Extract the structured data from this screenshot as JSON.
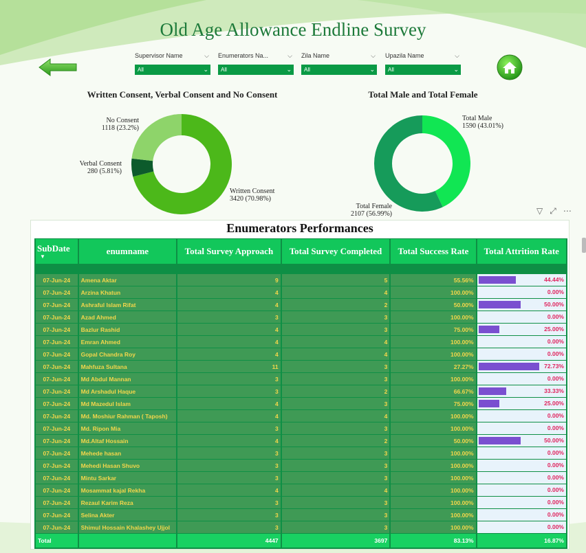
{
  "title": "Old Age Allowance Endline Survey",
  "slicers": [
    {
      "label": "Supervisor Name",
      "value": "All"
    },
    {
      "label": "Enumerators Na...",
      "value": "All"
    },
    {
      "label": "Zila Name",
      "value": "All"
    },
    {
      "label": "Upazila Name",
      "value": "All"
    }
  ],
  "consent_chart": {
    "title": "Written Consent, Verbal Consent and No Consent",
    "labels": [
      {
        "name": "No Consent",
        "value": "1118 (23.2%)"
      },
      {
        "name": "Verbal Consent",
        "value": "280 (5.81%)"
      },
      {
        "name": "Written Consent",
        "value": "3420 (70.98%)"
      }
    ]
  },
  "gender_chart": {
    "title": "Total Male and Total Female",
    "labels": [
      {
        "name": "Total Male",
        "value": "1590 (43.01%)"
      },
      {
        "name": "Total Female",
        "value": "2107 (56.99%)"
      }
    ]
  },
  "chart_data": [
    {
      "type": "pie",
      "title": "Written Consent, Verbal Consent and No Consent",
      "categories": [
        "Written Consent",
        "Verbal Consent",
        "No Consent"
      ],
      "values": [
        3420,
        280,
        1118
      ],
      "colors": [
        "#4cb81a",
        "#0d5b2c",
        "#8ed46a"
      ]
    },
    {
      "type": "pie",
      "title": "Total Male and Total Female",
      "categories": [
        "Total Male",
        "Total Female"
      ],
      "values": [
        1590,
        2107
      ],
      "colors": [
        "#11e653",
        "#169b5a"
      ]
    }
  ],
  "table": {
    "title": "Enumerators Performances",
    "headers": [
      "SubDate",
      "enumname",
      "Total Survey Approach",
      "Total Survey Completed",
      "Total Success Rate",
      "Total Attrition Rate"
    ],
    "rows": [
      {
        "date": "07-Jun-24",
        "name": "Amena Aktar",
        "approach": "9",
        "completed": "5",
        "success": "55.56%",
        "attrition": "44.44%",
        "attr_value": 0.4444
      },
      {
        "date": "07-Jun-24",
        "name": "Arzina Khatun",
        "approach": "4",
        "completed": "4",
        "success": "100.00%",
        "attrition": "0.00%",
        "attr_value": 0
      },
      {
        "date": "07-Jun-24",
        "name": "Ashraful Islam Rifat",
        "approach": "4",
        "completed": "2",
        "success": "50.00%",
        "attrition": "50.00%",
        "attr_value": 0.5
      },
      {
        "date": "07-Jun-24",
        "name": "Azad Ahmed",
        "approach": "3",
        "completed": "3",
        "success": "100.00%",
        "attrition": "0.00%",
        "attr_value": 0
      },
      {
        "date": "07-Jun-24",
        "name": "Bazlur Rashid",
        "approach": "4",
        "completed": "3",
        "success": "75.00%",
        "attrition": "25.00%",
        "attr_value": 0.25
      },
      {
        "date": "07-Jun-24",
        "name": "Emran Ahmed",
        "approach": "4",
        "completed": "4",
        "success": "100.00%",
        "attrition": "0.00%",
        "attr_value": 0
      },
      {
        "date": "07-Jun-24",
        "name": "Gopal Chandra Roy",
        "approach": "4",
        "completed": "4",
        "success": "100.00%",
        "attrition": "0.00%",
        "attr_value": 0
      },
      {
        "date": "07-Jun-24",
        "name": "Mahfuza Sultana",
        "approach": "11",
        "completed": "3",
        "success": "27.27%",
        "attrition": "72.73%",
        "attr_value": 0.7273
      },
      {
        "date": "07-Jun-24",
        "name": "Md Abdul Mannan",
        "approach": "3",
        "completed": "3",
        "success": "100.00%",
        "attrition": "0.00%",
        "attr_value": 0
      },
      {
        "date": "07-Jun-24",
        "name": "Md Arshadul Haque",
        "approach": "3",
        "completed": "2",
        "success": "66.67%",
        "attrition": "33.33%",
        "attr_value": 0.3333
      },
      {
        "date": "07-Jun-24",
        "name": "Md Mazedul Islam",
        "approach": "4",
        "completed": "3",
        "success": "75.00%",
        "attrition": "25.00%",
        "attr_value": 0.25
      },
      {
        "date": "07-Jun-24",
        "name": "Md. Moshiur Rahman ( Taposh)",
        "approach": "4",
        "completed": "4",
        "success": "100.00%",
        "attrition": "0.00%",
        "attr_value": 0
      },
      {
        "date": "07-Jun-24",
        "name": "Md. Ripon Mia",
        "approach": "3",
        "completed": "3",
        "success": "100.00%",
        "attrition": "0.00%",
        "attr_value": 0
      },
      {
        "date": "07-Jun-24",
        "name": "Md.Altaf Hossain",
        "approach": "4",
        "completed": "2",
        "success": "50.00%",
        "attrition": "50.00%",
        "attr_value": 0.5
      },
      {
        "date": "07-Jun-24",
        "name": "Mehede hasan",
        "approach": "3",
        "completed": "3",
        "success": "100.00%",
        "attrition": "0.00%",
        "attr_value": 0
      },
      {
        "date": "07-Jun-24",
        "name": "Mehedi Hasan Shuvo",
        "approach": "3",
        "completed": "3",
        "success": "100.00%",
        "attrition": "0.00%",
        "attr_value": 0
      },
      {
        "date": "07-Jun-24",
        "name": "Mintu Sarkar",
        "approach": "3",
        "completed": "3",
        "success": "100.00%",
        "attrition": "0.00%",
        "attr_value": 0
      },
      {
        "date": "07-Jun-24",
        "name": "Mosammat kajal Rekha",
        "approach": "4",
        "completed": "4",
        "success": "100.00%",
        "attrition": "0.00%",
        "attr_value": 0
      },
      {
        "date": "07-Jun-24",
        "name": "Rezaul Karim Reza",
        "approach": "3",
        "completed": "3",
        "success": "100.00%",
        "attrition": "0.00%",
        "attr_value": 0
      },
      {
        "date": "07-Jun-24",
        "name": "Selina Akter",
        "approach": "3",
        "completed": "3",
        "success": "100.00%",
        "attrition": "0.00%",
        "attr_value": 0
      },
      {
        "date": "07-Jun-24",
        "name": "Shimul Hossain Khalashey Ujjol",
        "approach": "3",
        "completed": "3",
        "success": "100.00%",
        "attrition": "0.00%",
        "attr_value": 0
      }
    ],
    "total": {
      "label": "Total",
      "approach": "4447",
      "completed": "3697",
      "success": "83.13%",
      "attrition": "16.87%"
    }
  }
}
